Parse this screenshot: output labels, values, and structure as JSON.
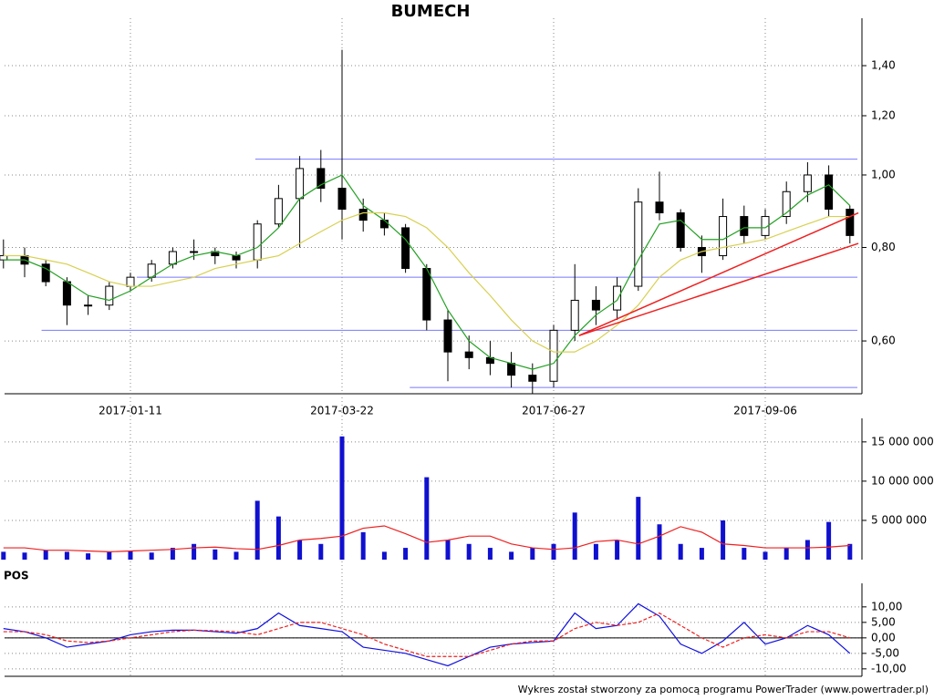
{
  "chart_data": [
    {
      "type": "candlestick",
      "title": "BUMECH",
      "log_scale": true,
      "grid": true,
      "up_color": "#ffffff",
      "down_color": "#000000",
      "categories": [
        null,
        null,
        null,
        null,
        null,
        null,
        "2017-01-11",
        null,
        null,
        null,
        null,
        null,
        null,
        null,
        null,
        null,
        "2017-03-22",
        null,
        null,
        null,
        null,
        null,
        null,
        null,
        null,
        null,
        "2017-06-27",
        null,
        null,
        null,
        null,
        null,
        null,
        null,
        null,
        null,
        "2017-09-06",
        null,
        null,
        null,
        null
      ],
      "open": [
        0.77,
        0.78,
        0.76,
        0.72,
        0.67,
        0.67,
        0.71,
        0.73,
        0.76,
        0.79,
        0.79,
        0.78,
        0.77,
        0.86,
        0.93,
        1.02,
        0.96,
        0.9,
        0.87,
        0.85,
        0.75,
        0.64,
        0.58,
        0.57,
        0.56,
        0.54,
        0.53,
        0.62,
        0.68,
        0.66,
        0.71,
        0.92,
        0.89,
        0.8,
        0.78,
        0.88,
        0.83,
        0.88,
        0.95,
        1.0,
        0.9
      ],
      "high": [
        0.82,
        0.8,
        0.77,
        0.73,
        0.69,
        0.72,
        0.74,
        0.77,
        0.8,
        0.82,
        0.8,
        0.79,
        0.87,
        0.97,
        1.06,
        1.08,
        1.47,
        0.93,
        0.89,
        0.86,
        0.76,
        0.66,
        0.61,
        0.6,
        0.58,
        0.56,
        0.63,
        0.76,
        0.71,
        0.73,
        0.96,
        1.01,
        0.9,
        0.83,
        0.93,
        0.91,
        0.9,
        0.98,
        1.04,
        1.03,
        0.91
      ],
      "low": [
        0.75,
        0.73,
        0.71,
        0.63,
        0.65,
        0.66,
        0.7,
        0.72,
        0.75,
        0.77,
        0.76,
        0.75,
        0.75,
        0.85,
        0.8,
        0.92,
        0.82,
        0.84,
        0.83,
        0.74,
        0.62,
        0.53,
        0.55,
        0.54,
        0.52,
        0.51,
        0.52,
        0.6,
        0.63,
        0.64,
        0.7,
        0.87,
        0.79,
        0.74,
        0.77,
        0.81,
        0.82,
        0.86,
        0.92,
        0.88,
        0.81
      ],
      "close": [
        0.78,
        0.76,
        0.72,
        0.67,
        0.67,
        0.71,
        0.73,
        0.76,
        0.79,
        0.79,
        0.78,
        0.77,
        0.86,
        0.93,
        1.02,
        0.96,
        0.9,
        0.87,
        0.85,
        0.75,
        0.64,
        0.58,
        0.57,
        0.56,
        0.54,
        0.53,
        0.62,
        0.68,
        0.66,
        0.71,
        0.92,
        0.89,
        0.8,
        0.78,
        0.88,
        0.83,
        0.88,
        0.95,
        1.0,
        0.9,
        0.83
      ],
      "overlays": [
        {
          "color": "#22a022",
          "values": [
            0.77,
            0.77,
            0.75,
            0.72,
            0.69,
            0.68,
            0.7,
            0.73,
            0.76,
            0.78,
            0.79,
            0.78,
            0.8,
            0.85,
            0.93,
            0.97,
            1.0,
            0.91,
            0.87,
            0.82,
            0.75,
            0.66,
            0.6,
            0.57,
            0.56,
            0.55,
            0.56,
            0.61,
            0.65,
            0.68,
            0.77,
            0.86,
            0.87,
            0.82,
            0.82,
            0.85,
            0.85,
            0.89,
            0.94,
            0.97,
            0.91
          ]
        },
        {
          "color": "#d8d050",
          "values": [
            0.78,
            0.78,
            0.77,
            0.76,
            0.74,
            0.72,
            0.71,
            0.71,
            0.72,
            0.73,
            0.75,
            0.76,
            0.77,
            0.78,
            0.81,
            0.84,
            0.87,
            0.89,
            0.89,
            0.88,
            0.85,
            0.8,
            0.74,
            0.69,
            0.64,
            0.6,
            0.58,
            0.58,
            0.6,
            0.63,
            0.67,
            0.73,
            0.77,
            0.79,
            0.8,
            0.81,
            0.82,
            0.84,
            0.86,
            0.88,
            0.88
          ]
        }
      ],
      "levels": [
        {
          "value": 1.05,
          "from": 11.9
        },
        {
          "value": 0.73,
          "from": 6.3
        },
        {
          "value": 0.62,
          "from": 1.8
        },
        {
          "value": 0.52,
          "from": 19.2
        }
      ],
      "level_color": "#7878ff",
      "trendlines": [
        {
          "x": [
            27.2,
            40.4
          ],
          "values": [
            0.61,
            0.89
          ]
        },
        {
          "x": [
            27.2,
            40.4
          ],
          "values": [
            0.61,
            0.81
          ]
        }
      ],
      "trend_color": "#ee2020",
      "ylim": [
        0.51,
        1.62
      ],
      "yticks": [
        {
          "value": 0.6,
          "label": "0,60"
        },
        {
          "value": 0.8,
          "label": "0,80"
        },
        {
          "value": 1.0,
          "label": "1,00"
        },
        {
          "value": 1.2,
          "label": "1,20"
        },
        {
          "value": 1.4,
          "label": "1,40"
        }
      ]
    },
    {
      "type": "bar",
      "color": "#1010d0",
      "grid": true,
      "values": [
        1000000,
        900000,
        1200000,
        1000000,
        800000,
        1000000,
        1100000,
        900000,
        1500000,
        2000000,
        1300000,
        1000000,
        7500000,
        5500000,
        2500000,
        2000000,
        15700000,
        3500000,
        1000000,
        1500000,
        10500000,
        2500000,
        2000000,
        1500000,
        1000000,
        1500000,
        2000000,
        6000000,
        2000000,
        2500000,
        8000000,
        4500000,
        2000000,
        1500000,
        5000000,
        1500000,
        1000000,
        1500000,
        2500000,
        4800000,
        2000000
      ],
      "overlays": [
        {
          "color": "#ee2020",
          "values": [
            1500000,
            1500000,
            1200000,
            1200000,
            1100000,
            1000000,
            1100000,
            1200000,
            1300000,
            1500000,
            1600000,
            1400000,
            1300000,
            1800000,
            2500000,
            2700000,
            3000000,
            4000000,
            4300000,
            3300000,
            2200000,
            2500000,
            3000000,
            3000000,
            2000000,
            1500000,
            1300000,
            1500000,
            2300000,
            2500000,
            2000000,
            3000000,
            4200000,
            3500000,
            2000000,
            1800000,
            1500000,
            1500000,
            1500000,
            1600000,
            1800000
          ]
        }
      ],
      "ylim": [
        0,
        18000000
      ],
      "yticks": [
        {
          "value": 5000000,
          "label": "5 000 000"
        },
        {
          "value": 10000000,
          "label": "10 000 000"
        },
        {
          "value": 15000000,
          "label": "15 000 000"
        }
      ]
    },
    {
      "type": "line",
      "title": "POS",
      "grid": true,
      "zero_line": true,
      "series": [
        {
          "color": "#1010e0",
          "dash": false,
          "values": [
            3,
            2,
            0,
            -3,
            -2,
            -1,
            1,
            2,
            2.5,
            2.5,
            2,
            1.5,
            3,
            8,
            4,
            3,
            2,
            -3,
            -4,
            -5,
            -7,
            -9,
            -6,
            -3,
            -2,
            -1.5,
            -1,
            8,
            3,
            4,
            11,
            7,
            -2,
            -5,
            -1,
            5,
            -2,
            0,
            4,
            1,
            -5
          ]
        },
        {
          "color": "#ee2020",
          "dash": true,
          "values": [
            2,
            2,
            1,
            -1,
            -1.5,
            -1,
            0,
            1,
            2,
            2.5,
            2.3,
            2,
            1,
            3,
            5,
            5,
            3,
            1,
            -2,
            -4,
            -6,
            -6,
            -6,
            -4,
            -2,
            -1,
            -1,
            3,
            5,
            4,
            5,
            8,
            4,
            0,
            -3,
            0,
            1,
            0,
            2,
            2,
            0
          ]
        }
      ],
      "ylim": [
        -12.4,
        17.6
      ],
      "yticks": [
        {
          "value": -10,
          "label": "-10,00"
        },
        {
          "value": -5,
          "label": "-5,00"
        },
        {
          "value": 0,
          "label": "0,00"
        },
        {
          "value": 5,
          "label": "5,00"
        },
        {
          "value": 10,
          "label": "10,00"
        }
      ]
    }
  ],
  "footer": "Wykres został stworzony za pomocą programu PowerTrader (www.powertrader.pl)"
}
